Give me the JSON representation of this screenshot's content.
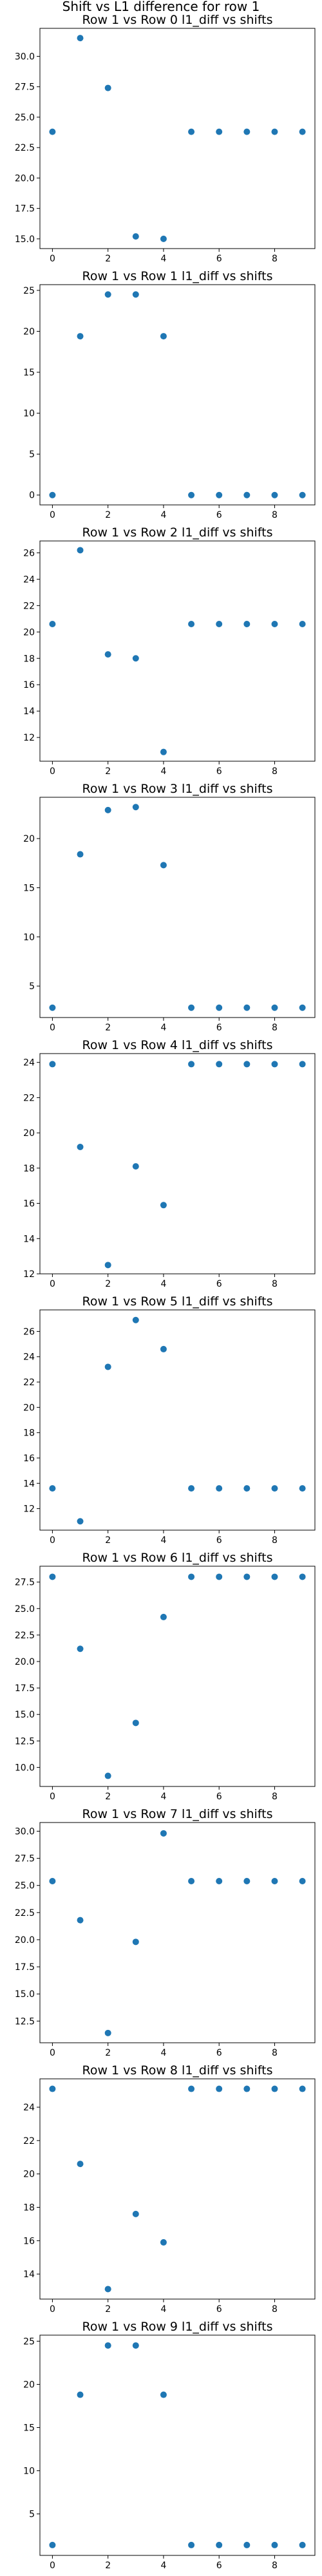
{
  "figure_title": "Shift vs L1 difference for row 1",
  "chart_data": [
    {
      "type": "scatter",
      "title": "Row 1 vs Row 0 l1_diff vs shifts",
      "x": [
        0,
        1,
        2,
        3,
        4,
        5,
        6,
        7,
        8,
        9
      ],
      "y": [
        23.8,
        31.5,
        27.4,
        15.2,
        15.0,
        23.8,
        23.8,
        23.8,
        23.8,
        23.8
      ],
      "xlim": [
        -0.45,
        9.45
      ],
      "ylim": [
        14.2,
        32.3
      ],
      "xticks": [
        0,
        2,
        4,
        6,
        8
      ],
      "yticks": [
        15.0,
        17.5,
        20.0,
        22.5,
        25.0,
        27.5,
        30.0
      ],
      "yticklabels": [
        "15.0",
        "17.5",
        "20.0",
        "22.5",
        "25.0",
        "27.5",
        "30.0"
      ]
    },
    {
      "type": "scatter",
      "title": "Row 1 vs Row 1 l1_diff vs shifts",
      "x": [
        0,
        1,
        2,
        3,
        4,
        5,
        6,
        7,
        8,
        9
      ],
      "y": [
        0,
        19.4,
        24.5,
        24.5,
        19.4,
        0,
        0,
        0,
        0,
        0
      ],
      "xlim": [
        -0.45,
        9.45
      ],
      "ylim": [
        -1.2,
        25.7
      ],
      "xticks": [
        0,
        2,
        4,
        6,
        8
      ],
      "yticks": [
        0,
        5,
        10,
        15,
        20,
        25
      ],
      "yticklabels": [
        "0",
        "5",
        "10",
        "15",
        "20",
        "25"
      ]
    },
    {
      "type": "scatter",
      "title": "Row 1 vs Row 2 l1_diff vs shifts",
      "x": [
        0,
        1,
        2,
        3,
        4,
        5,
        6,
        7,
        8,
        9
      ],
      "y": [
        20.6,
        26.2,
        18.3,
        18.0,
        10.9,
        20.6,
        20.6,
        20.6,
        20.6,
        20.6
      ],
      "xlim": [
        -0.45,
        9.45
      ],
      "ylim": [
        10.2,
        26.9
      ],
      "xticks": [
        0,
        2,
        4,
        6,
        8
      ],
      "yticks": [
        12,
        14,
        16,
        18,
        20,
        22,
        24,
        26
      ],
      "yticklabels": [
        "12",
        "14",
        "16",
        "18",
        "20",
        "22",
        "24",
        "26"
      ]
    },
    {
      "type": "scatter",
      "title": "Row 1 vs Row 3 l1_diff vs shifts",
      "x": [
        0,
        1,
        2,
        3,
        4,
        5,
        6,
        7,
        8,
        9
      ],
      "y": [
        2.8,
        18.4,
        22.9,
        23.2,
        17.3,
        2.8,
        2.8,
        2.8,
        2.8,
        2.8
      ],
      "xlim": [
        -0.45,
        9.45
      ],
      "ylim": [
        1.8,
        24.2
      ],
      "xticks": [
        0,
        2,
        4,
        6,
        8
      ],
      "yticks": [
        5,
        10,
        15,
        20
      ],
      "yticklabels": [
        "5",
        "10",
        "15",
        "20"
      ]
    },
    {
      "type": "scatter",
      "title": "Row 1 vs Row 4 l1_diff vs shifts",
      "x": [
        0,
        1,
        2,
        3,
        4,
        5,
        6,
        7,
        8,
        9
      ],
      "y": [
        23.9,
        19.2,
        12.5,
        18.1,
        15.9,
        23.9,
        23.9,
        23.9,
        23.9,
        23.9
      ],
      "xlim": [
        -0.45,
        9.45
      ],
      "ylim": [
        12.0,
        24.5
      ],
      "xticks": [
        0,
        2,
        4,
        6,
        8
      ],
      "yticks": [
        12,
        14,
        16,
        18,
        20,
        22,
        24
      ],
      "yticklabels": [
        "12",
        "14",
        "16",
        "18",
        "20",
        "22",
        "24"
      ]
    },
    {
      "type": "scatter",
      "title": "Row 1 vs Row 5 l1_diff vs shifts",
      "x": [
        0,
        1,
        2,
        3,
        4,
        5,
        6,
        7,
        8,
        9
      ],
      "y": [
        13.6,
        11.0,
        23.2,
        26.9,
        24.6,
        13.6,
        13.6,
        13.6,
        13.6,
        13.6
      ],
      "xlim": [
        -0.45,
        9.45
      ],
      "ylim": [
        10.3,
        27.7
      ],
      "xticks": [
        0,
        2,
        4,
        6,
        8
      ],
      "yticks": [
        12,
        14,
        16,
        18,
        20,
        22,
        24,
        26
      ],
      "yticklabels": [
        "12",
        "14",
        "16",
        "18",
        "20",
        "22",
        "24",
        "26"
      ]
    },
    {
      "type": "scatter",
      "title": "Row 1 vs Row 6 l1_diff vs shifts",
      "x": [
        0,
        1,
        2,
        3,
        4,
        5,
        6,
        7,
        8,
        9
      ],
      "y": [
        28.0,
        21.2,
        9.2,
        14.2,
        24.2,
        28.0,
        28.0,
        28.0,
        28.0,
        28.0
      ],
      "xlim": [
        -0.45,
        9.45
      ],
      "ylim": [
        8.2,
        29.0
      ],
      "xticks": [
        0,
        2,
        4,
        6,
        8
      ],
      "yticks": [
        10.0,
        12.5,
        15.0,
        17.5,
        20.0,
        22.5,
        25.0,
        27.5
      ],
      "yticklabels": [
        "10.0",
        "12.5",
        "15.0",
        "17.5",
        "20.0",
        "22.5",
        "25.0",
        "27.5"
      ]
    },
    {
      "type": "scatter",
      "title": "Row 1 vs Row 7 l1_diff vs shifts",
      "x": [
        0,
        1,
        2,
        3,
        4,
        5,
        6,
        7,
        8,
        9
      ],
      "y": [
        25.4,
        21.8,
        11.4,
        19.8,
        29.8,
        25.4,
        25.4,
        25.4,
        25.4,
        25.4
      ],
      "xlim": [
        -0.45,
        9.45
      ],
      "ylim": [
        10.5,
        30.8
      ],
      "xticks": [
        0,
        2,
        4,
        6,
        8
      ],
      "yticks": [
        12.5,
        15.0,
        17.5,
        20.0,
        22.5,
        25.0,
        27.5,
        30.0
      ],
      "yticklabels": [
        "12.5",
        "15.0",
        "17.5",
        "20.0",
        "22.5",
        "25.0",
        "27.5",
        "30.0"
      ]
    },
    {
      "type": "scatter",
      "title": "Row 1 vs Row 8 l1_diff vs shifts",
      "x": [
        0,
        1,
        2,
        3,
        4,
        5,
        6,
        7,
        8,
        9
      ],
      "y": [
        25.1,
        20.6,
        13.1,
        17.6,
        15.9,
        25.1,
        25.1,
        25.1,
        25.1,
        25.1
      ],
      "xlim": [
        -0.45,
        9.45
      ],
      "ylim": [
        12.5,
        25.7
      ],
      "xticks": [
        0,
        2,
        4,
        6,
        8
      ],
      "yticks": [
        14,
        16,
        18,
        20,
        22,
        24
      ],
      "yticklabels": [
        "14",
        "16",
        "18",
        "20",
        "22",
        "24"
      ]
    },
    {
      "type": "scatter",
      "title": "Row 1 vs Row 9 l1_diff vs shifts",
      "x": [
        0,
        1,
        2,
        3,
        4,
        5,
        6,
        7,
        8,
        9
      ],
      "y": [
        1.4,
        18.8,
        24.5,
        24.5,
        18.8,
        1.4,
        1.4,
        1.4,
        1.4,
        1.4
      ],
      "xlim": [
        -0.45,
        9.45
      ],
      "ylim": [
        0.2,
        25.7
      ],
      "xticks": [
        0,
        2,
        4,
        6,
        8
      ],
      "yticks": [
        5,
        10,
        15,
        20,
        25
      ],
      "yticklabels": [
        "5",
        "10",
        "15",
        "20",
        "25"
      ]
    }
  ]
}
